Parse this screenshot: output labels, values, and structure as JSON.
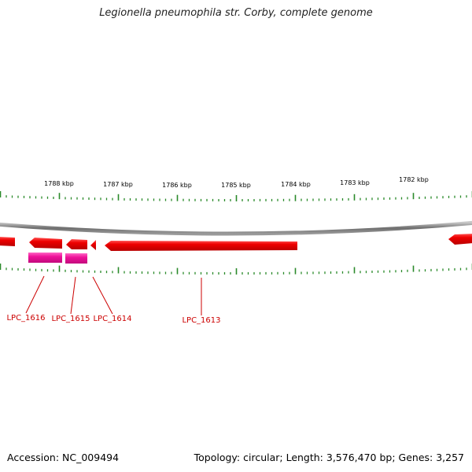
{
  "title": "Legionella pneumophila str. Corby, complete genome",
  "footer": {
    "accession": "Accession: NC_009494",
    "summary": "Topology: circular; Length: 3,576,470 bp; Genes: 3,257"
  },
  "scale": {
    "labels": [
      "1788 kbp",
      "1787 kbp",
      "1786 kbp",
      "1785 kbp",
      "1784 kbp",
      "1783 kbp",
      "1782 kbp"
    ]
  },
  "genes": [
    {
      "label": "LPC_1616"
    },
    {
      "label": "LPC_1615"
    },
    {
      "label": "LPC_1614"
    },
    {
      "label": "LPC_1613"
    }
  ],
  "colors": {
    "cds": "#ee0000",
    "cds_highlight": "#ff4444",
    "cds_shade": "#b30000",
    "rna": "#ee1199",
    "rna_highlight": "#ff55bb",
    "backbone": "#777777",
    "tick": "#2a8a2a",
    "label": "#cc0000"
  }
}
